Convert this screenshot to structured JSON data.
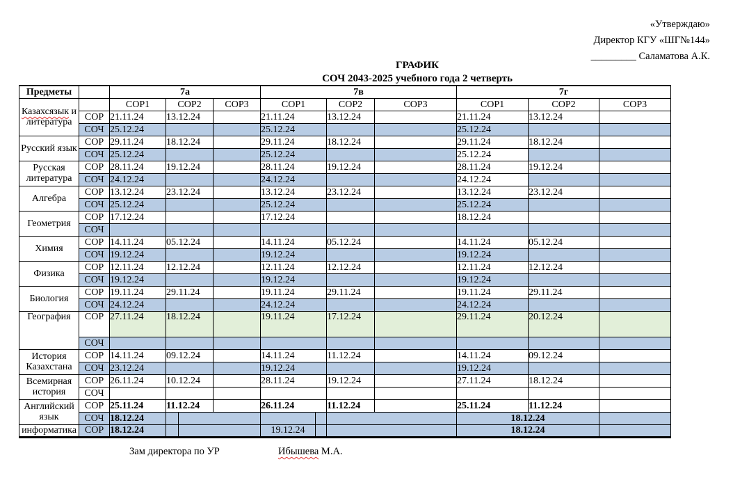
{
  "approval": {
    "line1": "«Утверждаю»",
    "line2": "Директор КГУ «ШГ№144»",
    "line3": "_________ Саламатова А.К."
  },
  "title": {
    "line1": "ГРАФИК",
    "line2": "СОЧ 2043-2025 учебного года 2 четверть"
  },
  "table": {
    "header": {
      "subjects": "Предметы",
      "classes": [
        "7а",
        "7в",
        "7г"
      ],
      "sor_columns": [
        "СОР1",
        "СОР2",
        "СОР3"
      ]
    },
    "row_labels": {
      "sor": "СОР",
      "soch": "СОЧ"
    },
    "colors": {
      "soch_band": "#b8cce4",
      "geography_band": "#e2efd9",
      "squiggle": "#e03030"
    },
    "subjects": [
      {
        "name": "Казахсязык и литература",
        "squiggle": "Казахсязык",
        "sor": [
          "21.11.24",
          "13.12.24",
          "",
          "21.11.24",
          "13.12.24",
          "",
          "21.11.24",
          "13.12.24",
          ""
        ],
        "soch": [
          "25.12.24",
          "",
          "",
          "25.12.24",
          "",
          "",
          "25.12.24",
          "",
          ""
        ]
      },
      {
        "name": "Русский язык",
        "sor": [
          "29.11.24",
          "18.12.24",
          "",
          "29.11.24",
          "18.12.24",
          "",
          "29.11.24",
          "18.12.24",
          ""
        ],
        "soch": [
          "25.12.24",
          "",
          "",
          "25.12.24",
          "",
          "",
          "25.12.24",
          "",
          ""
        ],
        "soch_white_cells": [
          6
        ]
      },
      {
        "name": "Русская литература",
        "sor": [
          "28.11.24",
          "19.12.24",
          "",
          "28.11.24",
          "19.12.24",
          "",
          "28.11.24",
          "19.12.24",
          ""
        ],
        "soch": [
          "24.12.24",
          "",
          "",
          "24.12.24",
          "",
          "",
          "24.12.24",
          "",
          ""
        ],
        "soch_white_cells": [
          6
        ]
      },
      {
        "name": "Алгебра",
        "sor": [
          "13.12.24",
          "23.12.24",
          "",
          "13.12.24",
          "23.12.24",
          "",
          "13.12.24",
          "23.12.24",
          ""
        ],
        "soch": [
          "25.12.24",
          "",
          "",
          "25.12.24",
          "",
          "",
          "25.12.24",
          "",
          ""
        ]
      },
      {
        "name": "Геометрия",
        "sor": [
          "17.12.24",
          "",
          "",
          "17.12.24",
          "",
          "",
          "18.12.24",
          "",
          ""
        ],
        "soch": [
          "",
          "",
          "",
          "",
          "",
          "",
          "",
          "",
          ""
        ]
      },
      {
        "name": "Химия",
        "sor": [
          "14.11.24",
          "05.12.24",
          "",
          "14.11.24",
          "05.12.24",
          "",
          "14.11.24",
          "05.12.24",
          ""
        ],
        "soch": [
          "19.12.24",
          "",
          "",
          "19.12.24",
          "",
          "",
          "19.12.24",
          "",
          ""
        ]
      },
      {
        "name": "Физика",
        "sor": [
          "12.11.24",
          "12.12.24",
          "",
          "12.11.24",
          "12.12.24",
          "",
          "12.11.24",
          "12.12.24",
          ""
        ],
        "soch": [
          "19.12.24",
          "",
          "",
          "19.12.24",
          "",
          "",
          "19.12.24",
          "",
          ""
        ]
      },
      {
        "name": "Биология",
        "sor": [
          "19.11.24",
          "29.11.24",
          "",
          "19.11.24",
          "29.11.24",
          "",
          "19.11.24",
          "29.11.24",
          ""
        ],
        "soch": [
          "24.12.24",
          "",
          "",
          "24.12.24",
          "",
          "",
          "24.12.24",
          "",
          ""
        ]
      },
      {
        "name": "География",
        "sor_green": true,
        "sor": [
          "27.11.24",
          "18.12.24",
          "",
          "19.11.24",
          "17.12.24",
          "",
          "29.11.24",
          "20.12.24",
          ""
        ],
        "soch": [
          "",
          "",
          "",
          "",
          "",
          "",
          "",
          "",
          ""
        ]
      },
      {
        "name": "История Казахстана",
        "sor": [
          "14.11.24",
          "09.12.24",
          "",
          "14.11.24",
          "11.12.24",
          "",
          "14.11.24",
          "09.12.24",
          ""
        ],
        "soch": [
          "23.12.24",
          "",
          "",
          "19.12.24",
          "",
          "",
          "19.12.24",
          "",
          ""
        ]
      },
      {
        "name": "Всемирная история",
        "soch_blue": false,
        "sor": [
          "26.11.24",
          "10.12.24",
          "",
          "28.11.24",
          "19.12.24",
          "",
          "27.11.24",
          "18.12.24",
          ""
        ],
        "soch": [
          "",
          "",
          "",
          "",
          "",
          "",
          "",
          "",
          ""
        ]
      },
      {
        "name": "Английский язык",
        "sor_bold": true,
        "sor": [
          "25.11.24",
          "11.12.24",
          "",
          "26.11.24",
          "11.12.24",
          "",
          "25.11.24",
          "11.12.24",
          ""
        ],
        "soch_special": {
          "a1": "18.12.24",
          "v1": "",
          "g": "18.12.24"
        }
      },
      {
        "name": "информатика",
        "sor_special": {
          "a1": "18.12.24",
          "v1": "19.12.24",
          "g": "18.12.24"
        }
      }
    ]
  },
  "footer": {
    "position": "Зам директора по УР",
    "name": "Ибышева М.А.",
    "squiggle": "Ибышева"
  }
}
